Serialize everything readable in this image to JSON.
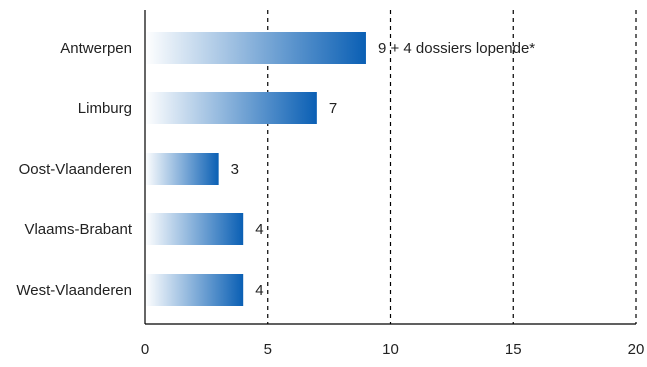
{
  "chart_data": {
    "type": "bar",
    "orientation": "horizontal",
    "categories": [
      "Antwerpen",
      "Limburg",
      "Oost-Vlaanderen",
      "Vlaams-Brabant",
      "West-Vlaanderen"
    ],
    "values": [
      9,
      7,
      3,
      4,
      4
    ],
    "data_labels": [
      "9 + 4 dossiers lopende*",
      "7",
      "3",
      "4",
      "4"
    ],
    "xlim": [
      0,
      20
    ],
    "x_ticks": [
      "0",
      "5",
      "10",
      "15",
      "20"
    ],
    "gridlines": "vertical dashed",
    "legend": "none",
    "colors": {
      "bar_start": "#ffffff",
      "bar_end": "#0a5fb4",
      "axis": "#000000",
      "grid": "#000000",
      "text": "#222222"
    }
  }
}
